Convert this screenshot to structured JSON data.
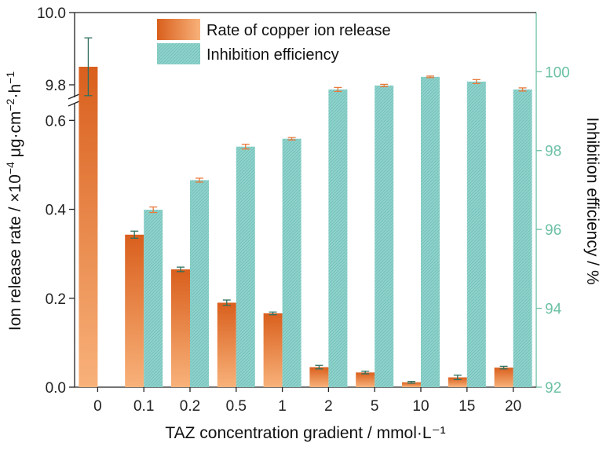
{
  "chart_data": {
    "type": "bar",
    "xlabel": "TAZ concentration gradient / mmol·L⁻¹",
    "ylabel_left_parts": [
      "Ion release rate / ×10",
      "−4",
      " μg·cm",
      "−2",
      "·h",
      "−1"
    ],
    "ylabel_right": "Inhibition efficiency / %",
    "categories": [
      "0",
      "0.1",
      "0.2",
      "0.5",
      "1",
      "2",
      "5",
      "10",
      "15",
      "20"
    ],
    "series": [
      {
        "name": "Rate of copper ion release",
        "axis": "left",
        "values": [
          9.85,
          0.343,
          0.265,
          0.19,
          0.166,
          0.045,
          0.033,
          0.011,
          0.022,
          0.044
        ],
        "errors": [
          0.08,
          0.008,
          0.005,
          0.006,
          0.003,
          0.004,
          0.003,
          0.002,
          0.005,
          0.003
        ],
        "color": "#e8793a"
      },
      {
        "name": "Inhibition efficiency",
        "axis": "right",
        "values": [
          null,
          96.5,
          97.25,
          98.1,
          98.3,
          99.55,
          99.65,
          99.87,
          99.75,
          99.55
        ],
        "errors": [
          null,
          0.07,
          0.05,
          0.06,
          0.03,
          0.05,
          0.03,
          0.02,
          0.05,
          0.04
        ],
        "color": "#7fcdc4"
      }
    ],
    "left_axis": {
      "lower_range": [
        0,
        0.65
      ],
      "upper_range": [
        9.75,
        10.0
      ],
      "lower_ticks": [
        "0.0",
        "0.2",
        "0.4",
        "0.6"
      ],
      "upper_ticks": [
        "9.8",
        "10.0"
      ],
      "broken": true
    },
    "right_axis": {
      "range": [
        92,
        101.5
      ],
      "ticks": [
        "92",
        "94",
        "96",
        "98",
        "100"
      ],
      "color": "#6cc0a5"
    },
    "legend_position": "top-center",
    "grid": false
  }
}
